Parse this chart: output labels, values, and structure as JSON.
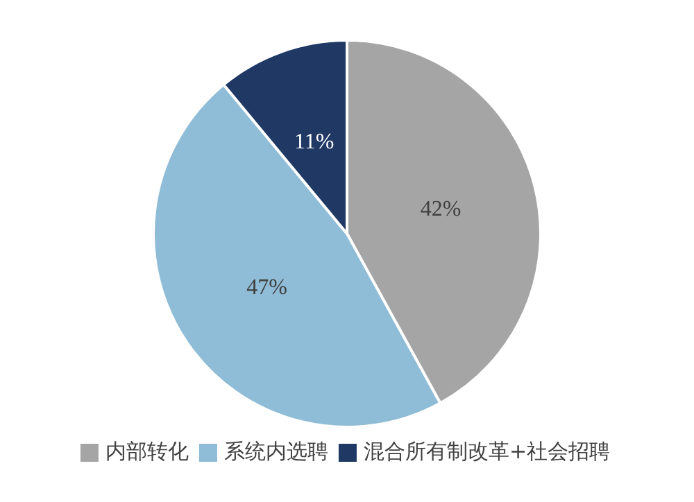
{
  "chart_data": {
    "type": "pie",
    "categories": [
      "内部转化",
      "系统内选聘",
      "混合所有制改革+社会招聘"
    ],
    "values": [
      42,
      47,
      11
    ],
    "value_labels": [
      "42%",
      "47%",
      "11%"
    ],
    "colors": [
      "#a5a5a5",
      "#8fbcd6",
      "#1f3864"
    ],
    "legend": "bottom"
  }
}
